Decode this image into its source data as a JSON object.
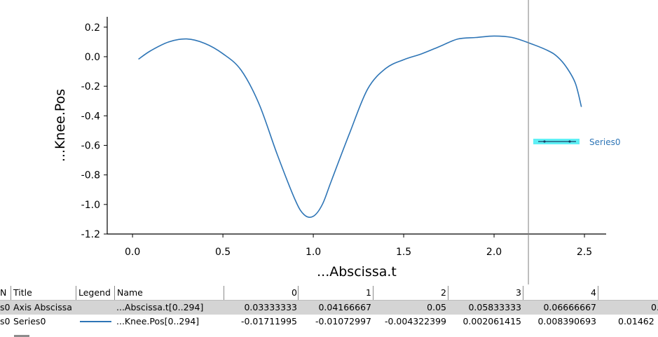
{
  "chart_data": {
    "type": "line",
    "xlabel": "...Abscissa.t",
    "ylabel": "...Knee.Pos",
    "xlim": [
      -0.14,
      2.62
    ],
    "ylim": [
      -1.2,
      0.27
    ],
    "xticks": [
      "0.0",
      "0.5",
      "1.0",
      "1.5",
      "2.0",
      "2.5"
    ],
    "yticks": [
      "0.2",
      "0.0",
      "-0.2",
      "-0.4",
      "-0.6",
      "-0.8",
      "-1.0",
      "-1.2"
    ],
    "grid": false,
    "legend_position": "right",
    "cursor_x": 2.19,
    "series": [
      {
        "name": "Series0",
        "color": "#2e75b6",
        "x": [
          0.033,
          0.1,
          0.2,
          0.3,
          0.4,
          0.5,
          0.6,
          0.7,
          0.8,
          0.9,
          0.95,
          1.0,
          1.05,
          1.1,
          1.2,
          1.3,
          1.4,
          1.5,
          1.6,
          1.7,
          1.8,
          1.9,
          2.0,
          2.1,
          2.2,
          2.3,
          2.35,
          2.4,
          2.45,
          2.483
        ],
        "y": [
          -0.017,
          0.04,
          0.1,
          0.12,
          0.09,
          0.02,
          -0.09,
          -0.32,
          -0.66,
          -0.97,
          -1.07,
          -1.08,
          -1.0,
          -0.84,
          -0.52,
          -0.22,
          -0.08,
          -0.02,
          0.02,
          0.07,
          0.12,
          0.13,
          0.14,
          0.13,
          0.09,
          0.04,
          0.0,
          -0.07,
          -0.18,
          -0.34
        ]
      }
    ]
  },
  "colors": {
    "series_line": "#2e75b6",
    "legend_highlight": "#5ff0f5",
    "legend_text": "#2e75b6",
    "cursor_line": "#808080",
    "row_highlight": "#d4d4d4"
  },
  "table": {
    "headers": [
      "N",
      "Title",
      "Legend",
      "Name",
      "0",
      "1",
      "2",
      "3",
      "4"
    ],
    "rows": [
      {
        "n": "s0",
        "title": "Axis Abscissa",
        "legend": "",
        "name": "...Abscissa.t[0..294]",
        "values": [
          "0.03333333",
          "0.04166667",
          "0.05",
          "0.05833333",
          "0.06666667",
          "0."
        ]
      },
      {
        "n": "s0",
        "title": "Series0",
        "legend": "line",
        "name": "...Knee.Pos[0..294]",
        "values": [
          "-0.01711995",
          "-0.01072997",
          "-0.004322399",
          "0.002061415",
          "0.008390693",
          "0.01462"
        ]
      }
    ]
  }
}
